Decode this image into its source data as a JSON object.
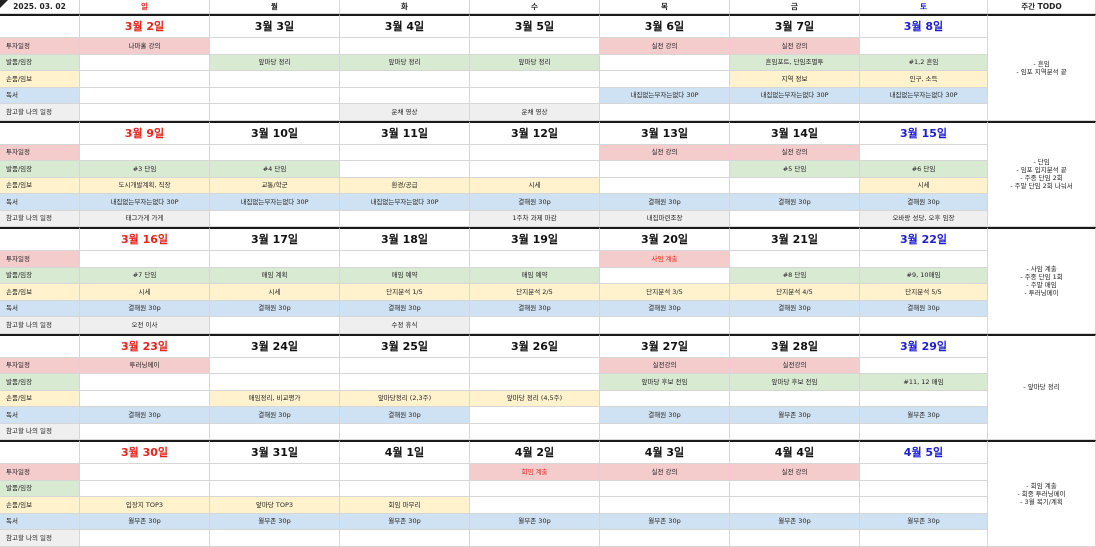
{
  "header": {
    "year_label": "2025. 03. 02",
    "day_names": [
      "일",
      "월",
      "화",
      "수",
      "목",
      "금",
      "토"
    ],
    "todo_header": "주간 TODO"
  },
  "row_labels": [
    "투자일정",
    "발품/임장",
    "손품/임보",
    "독서",
    "참고할 나의 일정"
  ],
  "colors": {
    "pink": "#f4cccc",
    "green": "#d9ead3",
    "yellow": "#fff2cc",
    "blue": "#cfe2f3",
    "grey": "#efefef",
    "sunday_red": "#e8231c",
    "saturday_blue": "#1d1dd9"
  },
  "weeks": [
    {
      "dates": [
        "3월 2일",
        "3월 3일",
        "3월 4일",
        "3월 5일",
        "3월 6일",
        "3월 7일",
        "3월 8일"
      ],
      "rows": [
        [
          [
            "나마홀 강의",
            "pink"
          ],
          [
            "",
            ""
          ],
          [
            "",
            ""
          ],
          [
            "",
            ""
          ],
          [
            "실전 강의",
            "pink"
          ],
          [
            "실전 강의",
            "pink"
          ],
          [
            "",
            ""
          ]
        ],
        [
          [
            "",
            ""
          ],
          [
            "앞마당 정리",
            "green"
          ],
          [
            "앞마당 정리",
            "green"
          ],
          [
            "앞마당 정리",
            "green"
          ],
          [
            "",
            ""
          ],
          [
            "흔임포트, 단임조별투",
            "green"
          ],
          [
            "#1,2 흔임",
            "green"
          ]
        ],
        [
          [
            "",
            ""
          ],
          [
            "",
            ""
          ],
          [
            "",
            ""
          ],
          [
            "",
            ""
          ],
          [
            "",
            ""
          ],
          [
            "지역 정보",
            "yellow"
          ],
          [
            "인구, 소득",
            "yellow"
          ]
        ],
        [
          [
            "",
            ""
          ],
          [
            "",
            ""
          ],
          [
            "",
            ""
          ],
          [
            "",
            ""
          ],
          [
            "내집없는부자는없다 30P",
            "blue"
          ],
          [
            "내집없는부자는없다 30P",
            "blue"
          ],
          [
            "내집없는부자는없다 30P",
            "blue"
          ]
        ],
        [
          [
            "",
            ""
          ],
          [
            "",
            ""
          ],
          [
            "운채 영상",
            "grey"
          ],
          [
            "운채 영상",
            "grey"
          ],
          [
            "",
            ""
          ],
          [
            "",
            ""
          ],
          [
            "",
            ""
          ]
        ]
      ],
      "todo": "- 흔임\n- 임포 지역분석 끝"
    },
    {
      "dates": [
        "3월 9일",
        "3월 10일",
        "3월 11일",
        "3월 12일",
        "3월 13일",
        "3월 14일",
        "3월 15일"
      ],
      "rows": [
        [
          [
            "",
            ""
          ],
          [
            "",
            ""
          ],
          [
            "",
            ""
          ],
          [
            "",
            ""
          ],
          [
            "실전 강의",
            "pink"
          ],
          [
            "실전 강의",
            "pink"
          ],
          [
            "",
            ""
          ]
        ],
        [
          [
            "#3 단임",
            "green"
          ],
          [
            "#4 단임",
            "green"
          ],
          [
            "",
            ""
          ],
          [
            "",
            ""
          ],
          [
            "",
            ""
          ],
          [
            "#5 단임",
            "green"
          ],
          [
            "#6 단임",
            "green"
          ]
        ],
        [
          [
            "도시개발계획, 직장",
            "yellow"
          ],
          [
            "교통/학군",
            "yellow"
          ],
          [
            "환경/공급",
            "yellow"
          ],
          [
            "시세",
            "yellow"
          ],
          [
            "",
            ""
          ],
          [
            "",
            ""
          ],
          [
            "시세",
            "yellow"
          ]
        ],
        [
          [
            "내집없는부자는없다 30P",
            "blue"
          ],
          [
            "내집없는부자는없다 30P",
            "blue"
          ],
          [
            "내집없는부자는없다 30P",
            "blue"
          ],
          [
            "결해원 30p",
            "blue"
          ],
          [
            "결해원 30p",
            "blue"
          ],
          [
            "결해원 30p",
            "blue"
          ],
          [
            "결해원 30p",
            "blue"
          ]
        ],
        [
          [
            "태그가게 가게",
            "grey"
          ],
          [
            "",
            ""
          ],
          [
            "",
            ""
          ],
          [
            "1주차 과제 마감",
            "grey"
          ],
          [
            "내집마련조장",
            "grey"
          ],
          [
            "",
            ""
          ],
          [
            "오바랑 성당, 오후 임장",
            "grey"
          ]
        ]
      ],
      "todo": "- 단임\n- 임포 입지분석 끝\n- 주중 단임 2회\n- 주말 단임 2회 나눠서"
    },
    {
      "dates": [
        "3월 16일",
        "3월 17일",
        "3월 18일",
        "3월 19일",
        "3월 20일",
        "3월 21일",
        "3월 22일"
      ],
      "rows": [
        [
          [
            "",
            ""
          ],
          [
            "",
            ""
          ],
          [
            "",
            ""
          ],
          [
            "",
            ""
          ],
          [
            "사임 계출",
            "pink"
          ],
          [
            "",
            ""
          ],
          [
            "",
            ""
          ]
        ],
        [
          [
            "#7 단임",
            "green"
          ],
          [
            "매임 계획",
            "green"
          ],
          [
            "매임 예약",
            "green"
          ],
          [
            "매임 예약",
            "green"
          ],
          [
            "",
            ""
          ],
          [
            "#8 단임",
            "green"
          ],
          [
            "#9, 10매임",
            "green"
          ]
        ],
        [
          [
            "시세",
            "yellow"
          ],
          [
            "시세",
            "yellow"
          ],
          [
            "단지분석 1/5",
            "yellow"
          ],
          [
            "단지분석 2/5",
            "yellow"
          ],
          [
            "단지분석 3/5",
            "yellow"
          ],
          [
            "단지분석 4/5",
            "yellow"
          ],
          [
            "단지분석 5/5",
            "yellow"
          ]
        ],
        [
          [
            "결해원 30p",
            "blue"
          ],
          [
            "결해원 30p",
            "blue"
          ],
          [
            "결해원 30p",
            "blue"
          ],
          [
            "결해원 30p",
            "blue"
          ],
          [
            "결해원 30p",
            "blue"
          ],
          [
            "결해원 30p",
            "blue"
          ],
          [
            "결해원 30p",
            "blue"
          ]
        ],
        [
          [
            "오전 이사",
            "grey"
          ],
          [
            "",
            ""
          ],
          [
            "수정 휴식",
            "grey"
          ],
          [
            "",
            ""
          ],
          [
            "",
            ""
          ],
          [
            "",
            ""
          ],
          [
            "",
            ""
          ]
        ]
      ],
      "todo": "- 사임 계출\n- 주중 단임 1회\n- 주말 매임\n- 투러닝메이"
    },
    {
      "dates": [
        "3월 23일",
        "3월 24일",
        "3월 25일",
        "3월 26일",
        "3월 27일",
        "3월 28일",
        "3월 29일"
      ],
      "rows": [
        [
          [
            "투러닝메이",
            "pink"
          ],
          [
            "",
            ""
          ],
          [
            "",
            ""
          ],
          [
            "",
            ""
          ],
          [
            "실전강의",
            "pink"
          ],
          [
            "실전강의",
            "pink"
          ],
          [
            "",
            ""
          ]
        ],
        [
          [
            "",
            ""
          ],
          [
            "",
            ""
          ],
          [
            "",
            ""
          ],
          [
            "",
            ""
          ],
          [
            "앞마당 후보 전임",
            "green"
          ],
          [
            "앞마당 후보 전임",
            "green"
          ],
          [
            "#11, 12 매임",
            "green"
          ]
        ],
        [
          [
            "",
            ""
          ],
          [
            "매임정리, 비교평가",
            "yellow"
          ],
          [
            "앞마당정리 (2,3주)",
            "yellow"
          ],
          [
            "앞마당 정리 (4,5주)",
            "yellow"
          ],
          [
            "",
            ""
          ],
          [
            "",
            ""
          ],
          [
            "",
            ""
          ]
        ],
        [
          [
            "결해원 30p",
            "blue"
          ],
          [
            "결해원 30p",
            "blue"
          ],
          [
            "결해원 30p",
            "blue"
          ],
          [
            "",
            ""
          ],
          [
            "결해원 30p",
            "blue"
          ],
          [
            "월부존 30p",
            "blue"
          ],
          [
            "월부존 30p",
            "blue"
          ]
        ],
        [
          [
            "",
            ""
          ],
          [
            "",
            ""
          ],
          [
            "",
            ""
          ],
          [
            "",
            ""
          ],
          [
            "",
            ""
          ],
          [
            "",
            ""
          ],
          [
            "",
            ""
          ]
        ]
      ],
      "todo": "- 앞마당 정리"
    },
    {
      "dates": [
        "3월 30일",
        "3월 31일",
        "4월 1일",
        "4월 2일",
        "4월 3일",
        "4월 4일",
        "4월 5일"
      ],
      "rows": [
        [
          [
            "",
            ""
          ],
          [
            "",
            ""
          ],
          [
            "",
            ""
          ],
          [
            "회임 계출",
            "pink"
          ],
          [
            "실전 강의",
            "pink"
          ],
          [
            "실전 강의",
            "pink"
          ],
          [
            "",
            ""
          ]
        ],
        [
          [
            "",
            ""
          ],
          [
            "",
            ""
          ],
          [
            "",
            ""
          ],
          [
            "",
            ""
          ],
          [
            "",
            ""
          ],
          [
            "",
            ""
          ],
          [
            "",
            ""
          ]
        ],
        [
          [
            "입장지 TOP3",
            "yellow"
          ],
          [
            "앞마당 TOP3",
            "yellow"
          ],
          [
            "회임 마무리",
            "yellow"
          ],
          [
            "",
            ""
          ],
          [
            "",
            ""
          ],
          [
            "",
            ""
          ],
          [
            "",
            ""
          ]
        ],
        [
          [
            "월부존 30p",
            "blue"
          ],
          [
            "월부존 30p",
            "blue"
          ],
          [
            "월부존 30p",
            "blue"
          ],
          [
            "월부존 30p",
            "blue"
          ],
          [
            "월부존 30p",
            "blue"
          ],
          [
            "월부존 30p",
            "blue"
          ],
          [
            "월부존 30p",
            "blue"
          ]
        ],
        [
          [
            "",
            ""
          ],
          [
            "",
            ""
          ],
          [
            "",
            ""
          ],
          [
            "",
            ""
          ],
          [
            "",
            ""
          ],
          [
            "",
            ""
          ],
          [
            "",
            ""
          ]
        ]
      ],
      "todo": "- 회임 계출\n- 회중 투러닝메이\n- 3월 복기/계획"
    }
  ]
}
